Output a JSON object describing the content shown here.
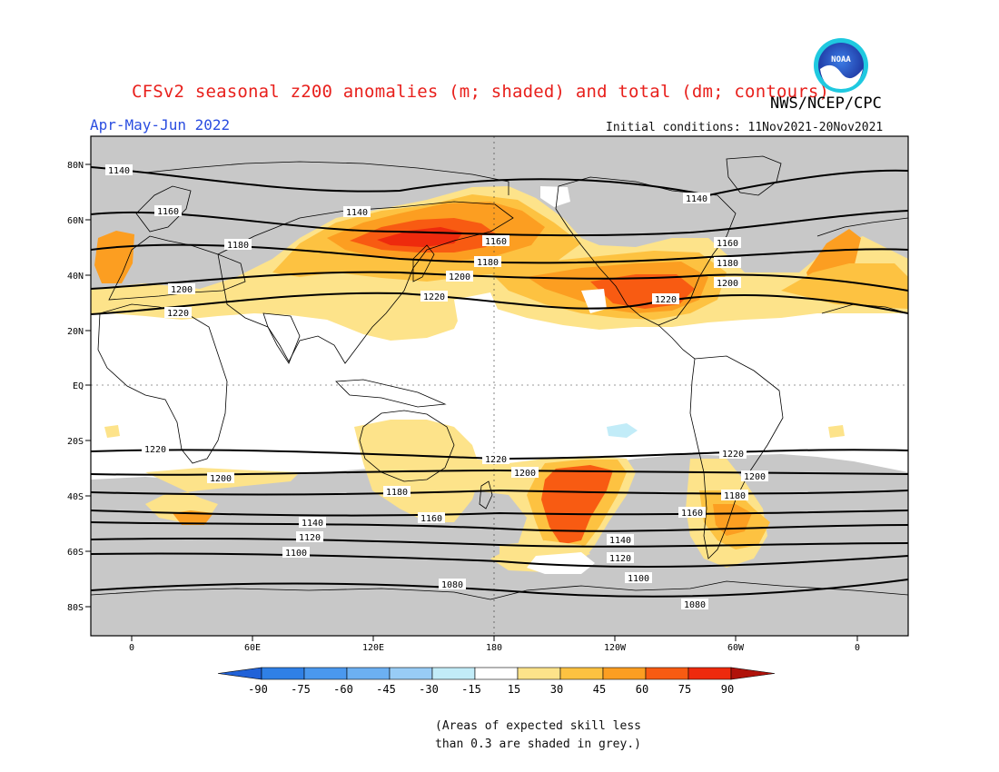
{
  "title": "CFSv2 seasonal z200 anomalies (m; shaded) and total (dm; contours)",
  "agency": "NWS/NCEP/CPC",
  "logo": {
    "text": "NOAA",
    "icon": "noaa-logo-icon"
  },
  "period": "Apr-May-Jun 2022",
  "initial_conditions": "Initial conditions: 11Nov2021-20Nov2021",
  "lat_labels": [
    "80N",
    "60N",
    "40N",
    "20N",
    "EQ",
    "20S",
    "40S",
    "60S",
    "80S"
  ],
  "lon_labels": [
    "0",
    "60E",
    "120E",
    "180",
    "120W",
    "60W",
    "0"
  ],
  "colorbar": {
    "labels": [
      "-90",
      "-75",
      "-60",
      "-45",
      "-30",
      "-15",
      "15",
      "30",
      "45",
      "60",
      "75",
      "90"
    ],
    "colors": [
      "#2162d8",
      "#2f80e6",
      "#4a98ee",
      "#6cb0f2",
      "#98ccf6",
      "#c2ecf8",
      "#ffffff",
      "#fde38a",
      "#fdc241",
      "#fc9e21",
      "#f85b12",
      "#ee2a0d",
      "#b0120a"
    ]
  },
  "contour_labels": [
    "1140",
    "1160",
    "1180",
    "1200",
    "1220",
    "1100",
    "1120",
    "1080"
  ],
  "skill_note": [
    "(Areas of expected skill less",
    "than 0.3 are shaded in grey.)"
  ],
  "chart_data": {
    "type": "heatmap",
    "variable": "z200 anomalies (m; shaded) and total (dm; contours)",
    "projection": "cylindrical equidistant",
    "lon_range": [
      -15,
      255
    ],
    "lat_range": [
      -90,
      90
    ],
    "shading_levels_m": [
      -90,
      -75,
      -60,
      -45,
      -30,
      -15,
      15,
      30,
      45,
      60,
      75,
      90
    ],
    "grey_mask": "expected skill < 0.3",
    "anomaly_features": [
      {
        "region": "Northwest Pacific / Sea of Okhotsk",
        "max_m": 75
      },
      {
        "region": "Central / Southern North America",
        "max_m": 75
      },
      {
        "region": "Western Europe / Iberia",
        "max_m": 60
      },
      {
        "region": "Eastern Asia subtropics",
        "max_m": 30
      },
      {
        "region": "South Pacific near 150W",
        "max_m": 60
      },
      {
        "region": "Southern South America",
        "max_m": 60
      },
      {
        "region": "Southern Africa near 40S",
        "max_m": 60
      },
      {
        "region": "Australia",
        "max_m": 30
      }
    ],
    "contours_dm": [
      {
        "value": 1140,
        "approx_lat": 77,
        "hemisphere": "N"
      },
      {
        "value": 1160,
        "approx_lat": 60,
        "hemisphere": "N"
      },
      {
        "value": 1180,
        "approx_lat": 47,
        "hemisphere": "N"
      },
      {
        "value": 1200,
        "approx_lat": 37,
        "hemisphere": "N"
      },
      {
        "value": 1220,
        "approx_lat": 28,
        "hemisphere": "N"
      },
      {
        "value": 1220,
        "approx_lat": -25,
        "hemisphere": "S"
      },
      {
        "value": 1200,
        "approx_lat": -32,
        "hemisphere": "S"
      },
      {
        "value": 1180,
        "approx_lat": -38,
        "hemisphere": "S"
      },
      {
        "value": 1160,
        "approx_lat": -47,
        "hemisphere": "S"
      },
      {
        "value": 1140,
        "approx_lat": -51,
        "hemisphere": "S"
      },
      {
        "value": 1120,
        "approx_lat": -56,
        "hemisphere": "S"
      },
      {
        "value": 1100,
        "approx_lat": -61,
        "hemisphere": "S"
      },
      {
        "value": 1080,
        "approx_lat": -73,
        "hemisphere": "S"
      }
    ]
  }
}
